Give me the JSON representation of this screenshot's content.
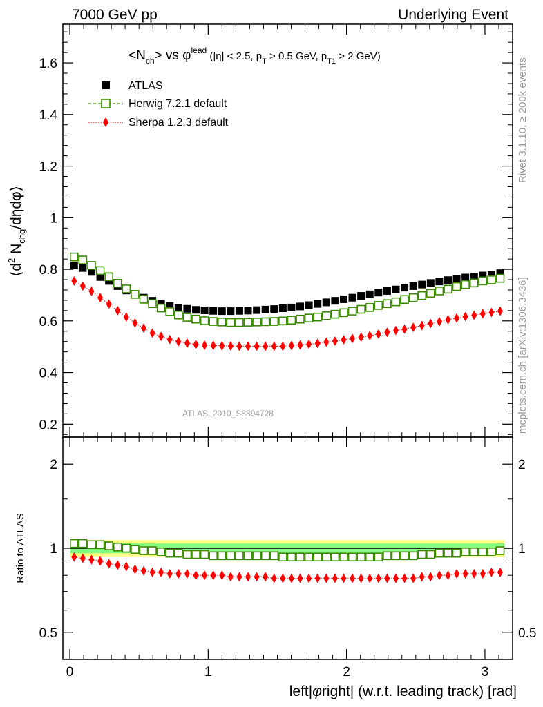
{
  "header": {
    "left": "7000 GeV pp",
    "right": "Underlying Event"
  },
  "side_labels": {
    "rivet": "Rivet 3.1.10, ≥ 200k events",
    "mcplots": "mcplots.cern.ch [arXiv:1306.3436]"
  },
  "colors": {
    "atlas": "#000000",
    "herwig": "#3a8a00",
    "sherpa": "#ff0000",
    "band_outer": "#ffff80",
    "band_inner": "#80ff80",
    "watermark": "#999999"
  },
  "chart_data": [
    {
      "type": "scatter",
      "panel": "main",
      "title_parts": {
        "nch": "<N",
        "nch_sub": "ch",
        "vs": "> vs φ",
        "lead_sup": "lead",
        "cut_open": " (|η| < 2.5, p",
        "pt_sub": "T",
        "cut_mid": " > 0.5 GeV, p",
        "pt1_sub": "T1",
        "cut_end": " > 2 GeV)"
      },
      "ylabel": "⟨d² N_chg/dηdφ⟩",
      "ylabel_parts": {
        "a": "⟨d",
        "sup": "2",
        "b": " N",
        "sub": "chg",
        "c": "/dηdφ⟩"
      },
      "ylim": [
        0.15,
        1.75
      ],
      "yticks": [
        0.2,
        0.4,
        0.6,
        0.8,
        1,
        1.2,
        1.4,
        1.6
      ],
      "ytick_labels": [
        "0.2",
        "0.4",
        "0.6",
        "0.8",
        "1",
        "1.2",
        "1.4",
        "1.6"
      ],
      "xlim": [
        -0.05,
        3.2
      ],
      "watermark": "ATLAS_2010_S8894728",
      "legend": [
        {
          "name": "ATLAS",
          "marker": "square-filled"
        },
        {
          "name": "Herwig 7.2.1 default",
          "marker": "square-open"
        },
        {
          "name": "Sherpa 1.2.3 default",
          "marker": "diamond"
        }
      ],
      "x": [
        0.0314,
        0.0942,
        0.1571,
        0.2199,
        0.2827,
        0.3456,
        0.4084,
        0.4712,
        0.5341,
        0.5969,
        0.6597,
        0.7226,
        0.7854,
        0.8482,
        0.9111,
        0.9739,
        1.0367,
        1.0996,
        1.1624,
        1.2252,
        1.2881,
        1.3509,
        1.4137,
        1.4765,
        1.5394,
        1.6022,
        1.665,
        1.7279,
        1.7907,
        1.8535,
        1.9164,
        1.9792,
        2.042,
        2.1049,
        2.1677,
        2.2305,
        2.2934,
        2.3562,
        2.419,
        2.4819,
        2.5447,
        2.6075,
        2.6704,
        2.7332,
        2.796,
        2.8588,
        2.9217,
        2.9845,
        3.0473,
        3.1102
      ],
      "series": [
        {
          "name": "ATLAS",
          "values": [
            0.815,
            0.805,
            0.79,
            0.77,
            0.755,
            0.735,
            0.718,
            0.703,
            0.69,
            0.678,
            0.667,
            0.658,
            0.651,
            0.647,
            0.643,
            0.641,
            0.639,
            0.638,
            0.638,
            0.639,
            0.64,
            0.642,
            0.644,
            0.646,
            0.649,
            0.652,
            0.656,
            0.661,
            0.666,
            0.672,
            0.678,
            0.684,
            0.69,
            0.697,
            0.703,
            0.71,
            0.716,
            0.722,
            0.729,
            0.735,
            0.741,
            0.747,
            0.753,
            0.758,
            0.763,
            0.768,
            0.772,
            0.776,
            0.78,
            0.785
          ]
        },
        {
          "name": "Herwig 7.2.1 default",
          "values": [
            0.848,
            0.836,
            0.815,
            0.795,
            0.771,
            0.746,
            0.724,
            0.703,
            0.684,
            0.667,
            0.65,
            0.636,
            0.623,
            0.614,
            0.607,
            0.601,
            0.598,
            0.596,
            0.594,
            0.594,
            0.595,
            0.596,
            0.597,
            0.598,
            0.6,
            0.603,
            0.607,
            0.611,
            0.615,
            0.62,
            0.626,
            0.632,
            0.638,
            0.645,
            0.652,
            0.66,
            0.667,
            0.674,
            0.683,
            0.69,
            0.698,
            0.707,
            0.716,
            0.723,
            0.733,
            0.741,
            0.747,
            0.755,
            0.759,
            0.765
          ]
        },
        {
          "name": "Sherpa 1.2.3 default",
          "values": [
            0.755,
            0.735,
            0.715,
            0.69,
            0.665,
            0.64,
            0.615,
            0.592,
            0.572,
            0.553,
            0.54,
            0.528,
            0.52,
            0.514,
            0.509,
            0.506,
            0.505,
            0.504,
            0.503,
            0.502,
            0.502,
            0.502,
            0.502,
            0.502,
            0.502,
            0.505,
            0.507,
            0.51,
            0.513,
            0.518,
            0.522,
            0.527,
            0.532,
            0.537,
            0.543,
            0.549,
            0.556,
            0.563,
            0.568,
            0.575,
            0.582,
            0.59,
            0.597,
            0.605,
            0.611,
            0.617,
            0.622,
            0.628,
            0.633,
            0.638
          ]
        }
      ]
    },
    {
      "type": "scatter",
      "panel": "ratio",
      "ylabel": "Ratio to ATLAS",
      "xlabel": "left|φright| (w.r.t. leading track) [rad]",
      "xlabel_parts": {
        "a": "left|",
        "phi": "φ",
        "b": "right| (w.r.t. leading track) [rad]"
      },
      "scale": "log",
      "ylim": [
        0.4,
        2.5
      ],
      "yticks": [
        0.5,
        1,
        2
      ],
      "ytick_labels": [
        "0.5",
        "1",
        "2"
      ],
      "xlim": [
        -0.05,
        3.2
      ],
      "xticks": [
        0,
        1,
        2,
        3
      ],
      "xtick_labels": [
        "0",
        "1",
        "2",
        "3"
      ],
      "band_inner": 0.04,
      "band_outer": 0.07,
      "series": [
        {
          "name": "Herwig 7.2.1 default",
          "values": [
            1.04,
            1.04,
            1.03,
            1.03,
            1.02,
            1.01,
            1.0,
            0.99,
            0.98,
            0.98,
            0.97,
            0.96,
            0.96,
            0.95,
            0.95,
            0.95,
            0.94,
            0.94,
            0.94,
            0.94,
            0.94,
            0.94,
            0.94,
            0.94,
            0.93,
            0.93,
            0.93,
            0.93,
            0.93,
            0.93,
            0.93,
            0.93,
            0.93,
            0.93,
            0.93,
            0.93,
            0.94,
            0.94,
            0.94,
            0.94,
            0.95,
            0.95,
            0.96,
            0.96,
            0.96,
            0.97,
            0.97,
            0.97,
            0.97,
            0.98
          ]
        },
        {
          "name": "Sherpa 1.2.3 default",
          "values": [
            0.93,
            0.92,
            0.91,
            0.9,
            0.88,
            0.87,
            0.86,
            0.84,
            0.83,
            0.82,
            0.82,
            0.81,
            0.81,
            0.81,
            0.8,
            0.8,
            0.8,
            0.8,
            0.79,
            0.79,
            0.79,
            0.79,
            0.79,
            0.78,
            0.78,
            0.78,
            0.78,
            0.78,
            0.78,
            0.78,
            0.78,
            0.78,
            0.78,
            0.78,
            0.78,
            0.78,
            0.78,
            0.78,
            0.78,
            0.78,
            0.79,
            0.79,
            0.8,
            0.8,
            0.81,
            0.81,
            0.81,
            0.81,
            0.82,
            0.82
          ]
        }
      ]
    }
  ]
}
